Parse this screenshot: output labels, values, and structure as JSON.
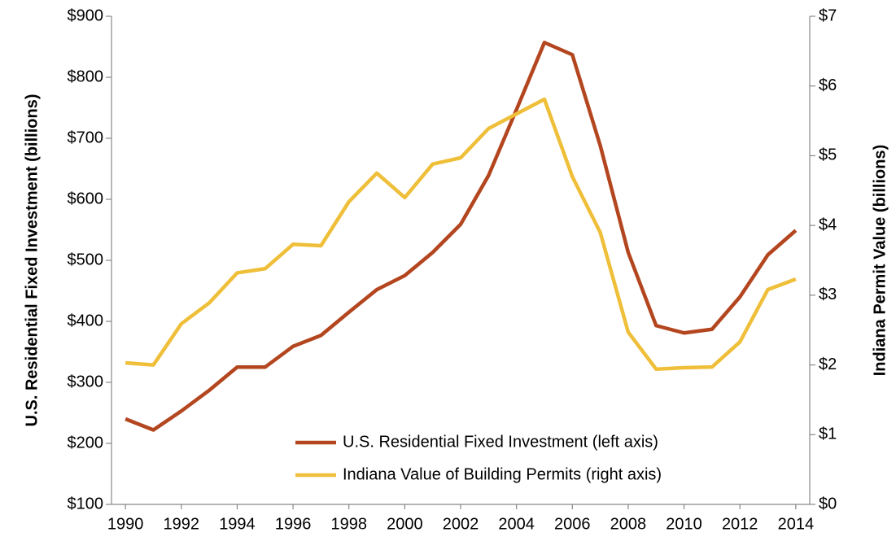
{
  "chart_data": {
    "type": "line",
    "x": [
      1990,
      1991,
      1992,
      1993,
      1994,
      1995,
      1996,
      1997,
      1998,
      1999,
      2000,
      2001,
      2002,
      2003,
      2004,
      2005,
      2006,
      2007,
      2008,
      2009,
      2010,
      2011,
      2012,
      2013,
      2014
    ],
    "series": [
      {
        "name": "U.S. Residential Fixed Investment (left axis)",
        "color": "#b3461f",
        "axis": "y",
        "values": [
          240,
          222,
          253,
          287,
          325,
          325,
          359,
          377,
          415,
          452,
          475,
          513,
          559,
          639,
          747,
          857,
          837,
          688,
          513,
          393,
          381,
          387,
          440,
          509,
          549
        ]
      },
      {
        "name": "Indiana Value of Building Permits (right axis)",
        "color": "#efbf3a",
        "axis": "y2",
        "values": [
          2.03,
          2.0,
          2.59,
          2.89,
          3.32,
          3.38,
          3.73,
          3.71,
          4.34,
          4.75,
          4.4,
          4.88,
          4.97,
          5.39,
          5.6,
          5.81,
          4.7,
          3.9,
          2.47,
          1.94,
          1.96,
          1.97,
          2.33,
          3.08,
          3.23
        ]
      }
    ],
    "ylabel": "U.S. Residential Fixed Investment (billions)",
    "y2label": "Indiana Permit Value (billions)",
    "xlim": [
      1989.5,
      2014.5
    ],
    "xticks": [
      1990,
      1992,
      1994,
      1996,
      1998,
      2000,
      2002,
      2004,
      2006,
      2008,
      2010,
      2012,
      2014
    ],
    "ylim": [
      100,
      900
    ],
    "yticks": [
      {
        "value": 100,
        "label": "$100"
      },
      {
        "value": 200,
        "label": "$200"
      },
      {
        "value": 300,
        "label": "$300"
      },
      {
        "value": 400,
        "label": "$400"
      },
      {
        "value": 500,
        "label": "$500"
      },
      {
        "value": 600,
        "label": "$600"
      },
      {
        "value": 700,
        "label": "$700"
      },
      {
        "value": 800,
        "label": "$800"
      },
      {
        "value": 900,
        "label": "$900"
      }
    ],
    "y2lim": [
      0,
      7
    ],
    "y2ticks": [
      {
        "value": 0,
        "label": "$0"
      },
      {
        "value": 1,
        "label": "$1"
      },
      {
        "value": 2,
        "label": "$2"
      },
      {
        "value": 3,
        "label": "$3"
      },
      {
        "value": 4,
        "label": "$4"
      },
      {
        "value": 5,
        "label": "$5"
      },
      {
        "value": 6,
        "label": "$6"
      },
      {
        "value": 7,
        "label": "$7"
      }
    ],
    "legend": "lower right",
    "grid": false
  }
}
